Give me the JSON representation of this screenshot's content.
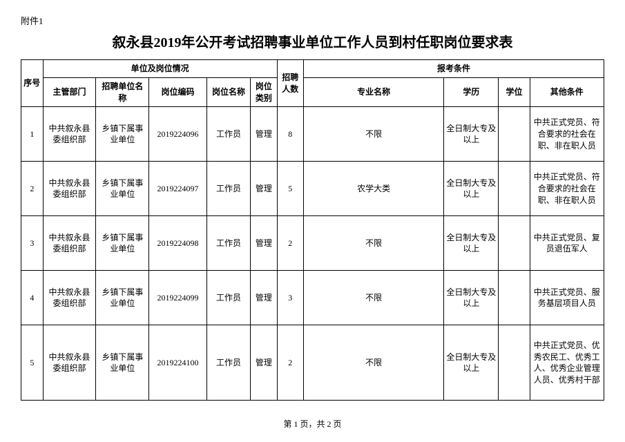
{
  "attachment_label": "附件1",
  "title": "叙永县2019年公开考试招聘事业单位工作人员到村任职岗位要求表",
  "header_group1": "单位及岗位情况",
  "header_group2": "报考条件",
  "columns": {
    "seq": "序号",
    "dept": "主管部门",
    "unit": "招聘单位名称",
    "code": "岗位编码",
    "posname": "岗位名称",
    "postype": "岗位类别",
    "count": "招聘人数",
    "major": "专业名称",
    "edu": "学历",
    "degree": "学位",
    "other": "其他条件"
  },
  "rows": [
    {
      "seq": "1",
      "dept": "中共叙永县委组织部",
      "unit": "乡镇下属事业单位",
      "code": "2019224096",
      "posname": "工作员",
      "postype": "管理",
      "count": "8",
      "major": "不限",
      "edu": "全日制大专及以上",
      "degree": "",
      "other": "中共正式党员、符合要求的社会在职、非在职人员"
    },
    {
      "seq": "2",
      "dept": "中共叙永县委组织部",
      "unit": "乡镇下属事业单位",
      "code": "2019224097",
      "posname": "工作员",
      "postype": "管理",
      "count": "5",
      "major": "农学大类",
      "edu": "全日制大专及以上",
      "degree": "",
      "other": "中共正式党员、符合要求的社会在职、非在职人员"
    },
    {
      "seq": "3",
      "dept": "中共叙永县委组织部",
      "unit": "乡镇下属事业单位",
      "code": "2019224098",
      "posname": "工作员",
      "postype": "管理",
      "count": "2",
      "major": "不限",
      "edu": "全日制大专及以上",
      "degree": "",
      "other": "中共正式党员、复员退伍军人"
    },
    {
      "seq": "4",
      "dept": "中共叙永县委组织部",
      "unit": "乡镇下属事业单位",
      "code": "2019224099",
      "posname": "工作员",
      "postype": "管理",
      "count": "3",
      "major": "不限",
      "edu": "全日制大专及以上",
      "degree": "",
      "other": "中共正式党员、服务基层项目人员"
    },
    {
      "seq": "5",
      "dept": "中共叙永县委组织部",
      "unit": "乡镇下属事业单位",
      "code": "2019224100",
      "posname": "工作员",
      "postype": "管理",
      "count": "2",
      "major": "不限",
      "edu": "全日制大专及以上",
      "degree": "",
      "other": "中共正式党员、优秀农民工、优秀工人、优秀企业管理人员、优秀村干部"
    }
  ],
  "footer": "第 1 页，共 2 页"
}
